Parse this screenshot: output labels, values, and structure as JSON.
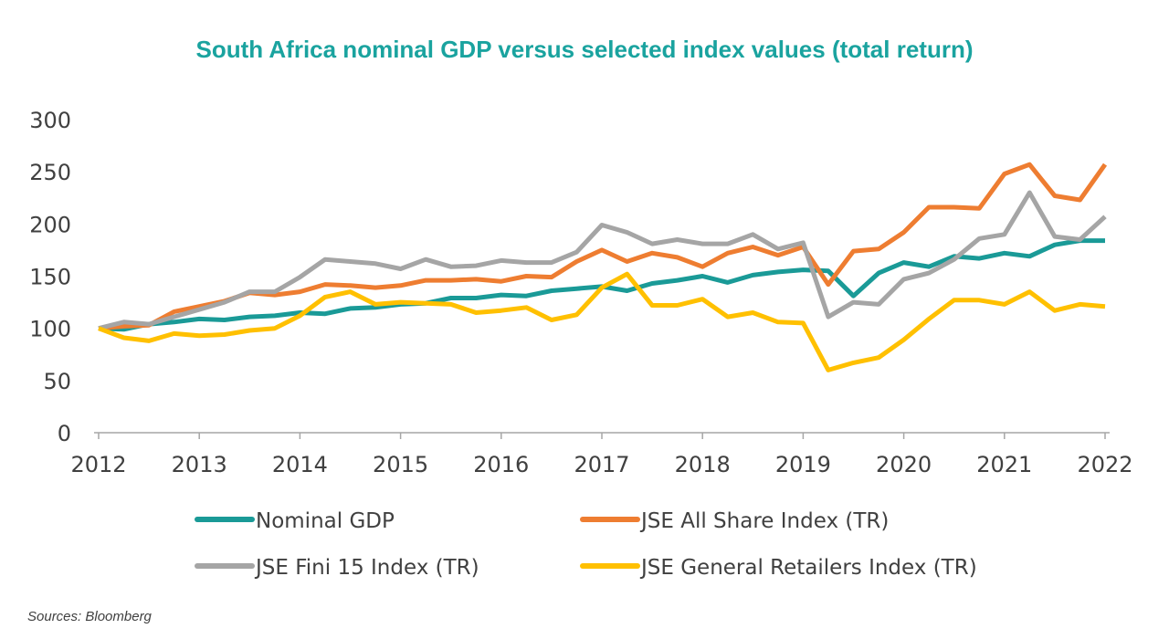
{
  "colors": {
    "title": "#1aa39f",
    "axis": "#a6a6a6",
    "text": "#404040",
    "gdp": "#1a9a97",
    "allshare": "#ee7d31",
    "fini15": "#a5a5a5",
    "retail": "#ffc000"
  },
  "source": "Sources: Bloomberg",
  "chart_data": {
    "type": "line",
    "title": "South Africa nominal GDP versus selected index values (total return)",
    "xlabel": "",
    "ylabel": "",
    "ylim": [
      0,
      300
    ],
    "xlim": [
      2012.0,
      2022.0
    ],
    "yticks": [
      0,
      50,
      100,
      150,
      200,
      250,
      300
    ],
    "xticks": [
      2012,
      2013,
      2014,
      2015,
      2016,
      2017,
      2018,
      2019,
      2020,
      2021,
      2022
    ],
    "grid": false,
    "legend_position": "bottom",
    "x": [
      2012.0,
      2012.25,
      2012.5,
      2012.75,
      2013.0,
      2013.25,
      2013.5,
      2013.75,
      2014.0,
      2014.25,
      2014.5,
      2014.75,
      2015.0,
      2015.25,
      2015.5,
      2015.75,
      2016.0,
      2016.25,
      2016.5,
      2016.75,
      2017.0,
      2017.25,
      2017.5,
      2017.75,
      2018.0,
      2018.25,
      2018.5,
      2018.75,
      2019.0,
      2019.25,
      2019.5,
      2019.75,
      2020.0,
      2020.25,
      2020.5,
      2020.75,
      2021.0,
      2021.25,
      2021.5,
      2021.75,
      2022.0
    ],
    "series": [
      {
        "name": "Nominal GDP",
        "color_key": "gdp",
        "values": [
          100,
          99,
          104,
          106,
          109,
          108,
          111,
          112,
          115,
          114,
          119,
          120,
          123,
          124,
          129,
          129,
          132,
          131,
          136,
          138,
          140,
          136,
          143,
          146,
          150,
          144,
          151,
          154,
          156,
          155,
          131,
          153,
          163,
          159,
          169,
          167,
          172,
          169,
          180,
          184,
          184
        ]
      },
      {
        "name": "JSE All Share Index (TR)",
        "color_key": "allshare",
        "values": [
          100,
          102,
          103,
          116,
          121,
          126,
          134,
          132,
          135,
          142,
          141,
          139,
          141,
          146,
          146,
          147,
          145,
          150,
          149,
          164,
          175,
          164,
          172,
          168,
          159,
          172,
          178,
          170,
          178,
          142,
          174,
          176,
          192,
          216,
          216,
          215,
          248,
          257,
          227,
          223,
          257
        ]
      },
      {
        "name": "JSE Fini 15 Index (TR)",
        "color_key": "fini15",
        "values": [
          100,
          106,
          104,
          111,
          118,
          125,
          135,
          135,
          149,
          166,
          164,
          162,
          157,
          166,
          159,
          160,
          165,
          163,
          163,
          173,
          199,
          192,
          181,
          185,
          181,
          181,
          190,
          176,
          182,
          111,
          125,
          123,
          147,
          153,
          166,
          186,
          190,
          230,
          188,
          185,
          207
        ]
      },
      {
        "name": "JSE General Retailers Index (TR)",
        "color_key": "retail",
        "values": [
          100,
          91,
          88,
          95,
          93,
          94,
          98,
          100,
          112,
          130,
          135,
          123,
          125,
          124,
          123,
          115,
          117,
          120,
          108,
          113,
          139,
          152,
          122,
          122,
          128,
          111,
          115,
          106,
          105,
          60,
          67,
          72,
          89,
          109,
          127,
          127,
          123,
          135,
          117,
          123,
          121
        ]
      }
    ]
  }
}
